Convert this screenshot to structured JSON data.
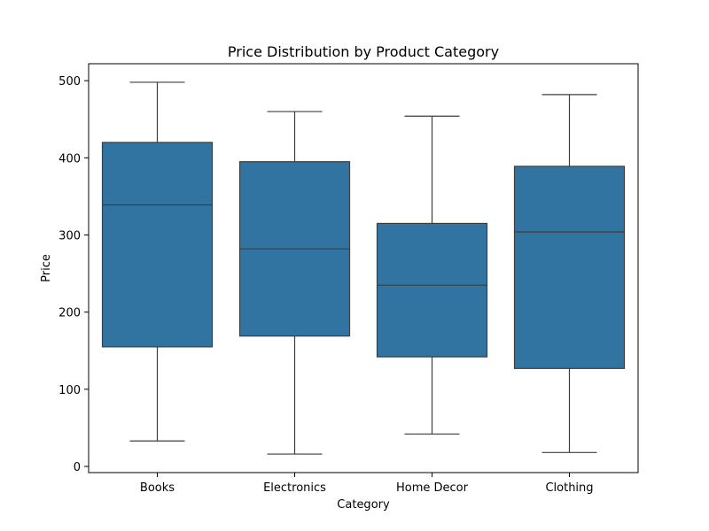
{
  "chart_data": {
    "type": "box",
    "title": "Price Distribution by Product Category",
    "xlabel": "Category",
    "ylabel": "Price",
    "ylim": [
      -8,
      522
    ],
    "yticks": [
      0,
      100,
      200,
      300,
      400,
      500
    ],
    "categories": [
      "Books",
      "Electronics",
      "Home Decor",
      "Clothing"
    ],
    "boxes": [
      {
        "category": "Books",
        "min": 33,
        "q1": 155,
        "median": 339,
        "q3": 420,
        "max": 498
      },
      {
        "category": "Electronics",
        "min": 16,
        "q1": 169,
        "median": 282,
        "q3": 395,
        "max": 460
      },
      {
        "category": "Home Decor",
        "min": 42,
        "q1": 142,
        "median": 235,
        "q3": 315,
        "max": 454
      },
      {
        "category": "Clothing",
        "min": 18,
        "q1": 127,
        "median": 304,
        "q3": 389,
        "max": 482
      }
    ],
    "box_color": "#3274a1",
    "line_color": "#3d3d3d",
    "grid": false,
    "legend": false
  }
}
